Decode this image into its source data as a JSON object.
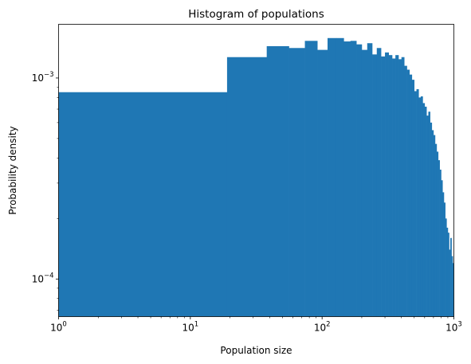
{
  "chart_data": {
    "type": "bar",
    "title": "Histogram of populations",
    "xlabel": "Population size",
    "ylabel": "Probability density",
    "xscale": "log",
    "yscale": "log",
    "xlim": [
      1,
      1000
    ],
    "ylim": [
      6.5e-05,
      0.00185
    ],
    "grid": false,
    "legend": "none",
    "color": "#1f77b4",
    "x_ticks": [
      {
        "base": "10",
        "exp": "0",
        "value": 1
      },
      {
        "base": "10",
        "exp": "1",
        "value": 10
      },
      {
        "base": "10",
        "exp": "2",
        "value": 100
      },
      {
        "base": "10",
        "exp": "3",
        "value": 1000
      }
    ],
    "y_ticks": [
      {
        "base": "10",
        "exp": "−4",
        "value": 0.0001
      },
      {
        "base": "10",
        "exp": "−3",
        "value": 0.001
      }
    ],
    "bins": [
      [
        1,
        19,
        0.00085
      ],
      [
        19,
        38,
        0.00127
      ],
      [
        38,
        56,
        0.00144
      ],
      [
        56,
        74,
        0.00141
      ],
      [
        74,
        92,
        0.00153
      ],
      [
        92,
        110,
        0.00138
      ],
      [
        110,
        128,
        0.00158
      ],
      [
        128,
        146,
        0.00158
      ],
      [
        146,
        164,
        0.00152
      ],
      [
        164,
        182,
        0.00153
      ],
      [
        182,
        200,
        0.00147
      ],
      [
        200,
        220,
        0.00138
      ],
      [
        220,
        240,
        0.00149
      ],
      [
        240,
        260,
        0.00131
      ],
      [
        260,
        280,
        0.00141
      ],
      [
        280,
        300,
        0.00128
      ],
      [
        300,
        320,
        0.00134
      ],
      [
        320,
        340,
        0.0013
      ],
      [
        340,
        360,
        0.00125
      ],
      [
        360,
        380,
        0.0013
      ],
      [
        380,
        400,
        0.00124
      ],
      [
        400,
        420,
        0.00127
      ],
      [
        420,
        440,
        0.00115
      ],
      [
        440,
        460,
        0.0011
      ],
      [
        460,
        480,
        0.00104
      ],
      [
        480,
        500,
        0.00098
      ],
      [
        500,
        520,
        0.00086
      ],
      [
        520,
        540,
        0.00088
      ],
      [
        540,
        560,
        0.0008
      ],
      [
        560,
        580,
        0.00081
      ],
      [
        580,
        600,
        0.00075
      ],
      [
        600,
        620,
        0.00072
      ],
      [
        620,
        640,
        0.00065
      ],
      [
        640,
        660,
        0.00068
      ],
      [
        660,
        680,
        0.0006
      ],
      [
        680,
        700,
        0.00055
      ],
      [
        700,
        720,
        0.00052
      ],
      [
        720,
        740,
        0.00047
      ],
      [
        740,
        760,
        0.00043
      ],
      [
        760,
        780,
        0.00039
      ],
      [
        780,
        800,
        0.00035
      ],
      [
        800,
        820,
        0.00031
      ],
      [
        820,
        840,
        0.00027
      ],
      [
        840,
        860,
        0.00024
      ],
      [
        860,
        880,
        0.0002
      ],
      [
        880,
        900,
        0.00018
      ],
      [
        900,
        920,
        0.00017
      ],
      [
        920,
        940,
        0.00014
      ],
      [
        940,
        960,
        0.00016
      ],
      [
        960,
        980,
        0.00013
      ],
      [
        980,
        1000,
        0.00012
      ]
    ]
  }
}
